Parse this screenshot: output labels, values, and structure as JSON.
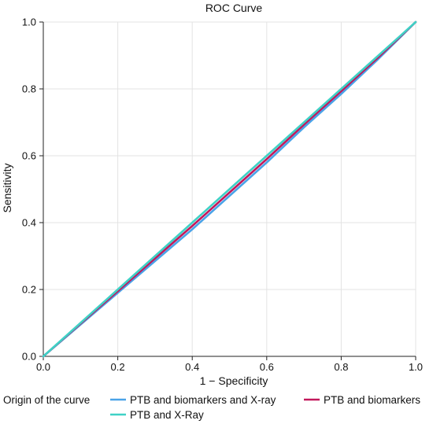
{
  "chart_data": {
    "type": "line",
    "title": "ROC Curve",
    "xlabel": "1 − Specificity",
    "ylabel": "Sensitivity",
    "xlim": [
      0.0,
      1.0
    ],
    "ylim": [
      0.0,
      1.0
    ],
    "xticks": [
      "0.0",
      "0.2",
      "0.4",
      "0.6",
      "0.8",
      "1.0"
    ],
    "yticks": [
      "0.0",
      "0.2",
      "0.4",
      "0.6",
      "0.8",
      "1.0"
    ],
    "grid": true,
    "legend": {
      "title": "Origin of the curve",
      "placement": "bottom"
    },
    "series": [
      {
        "name": "PTB and biomarkers and X-ray",
        "color": "#4aa3e8",
        "x": [
          0.0,
          0.1,
          0.2,
          0.3,
          0.4,
          0.5,
          0.6,
          0.7,
          0.8,
          0.9,
          1.0
        ],
        "y": [
          0.0,
          0.095,
          0.19,
          0.285,
          0.38,
          0.48,
          0.58,
          0.685,
          0.785,
          0.89,
          1.0
        ]
      },
      {
        "name": "PTB and biomarkers",
        "color": "#c2185b",
        "x": [
          0.0,
          0.1,
          0.2,
          0.3,
          0.4,
          0.5,
          0.6,
          0.7,
          0.8,
          0.9,
          1.0
        ],
        "y": [
          0.0,
          0.098,
          0.195,
          0.293,
          0.39,
          0.49,
          0.59,
          0.693,
          0.793,
          0.895,
          1.0
        ]
      },
      {
        "name": "PTB and X-Ray",
        "color": "#3fd1c6",
        "x": [
          0.0,
          0.1,
          0.2,
          0.3,
          0.4,
          0.5,
          0.6,
          0.7,
          0.8,
          0.9,
          1.0
        ],
        "y": [
          0.0,
          0.1,
          0.2,
          0.3,
          0.4,
          0.5,
          0.6,
          0.7,
          0.8,
          0.9,
          1.0
        ]
      }
    ]
  }
}
